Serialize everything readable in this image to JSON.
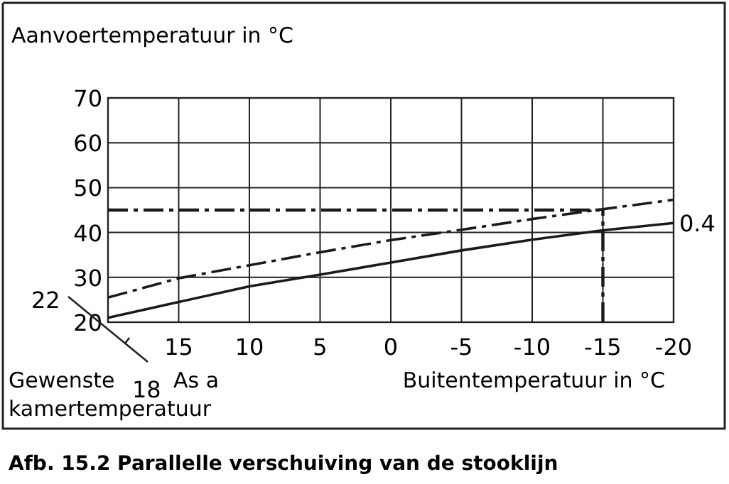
{
  "chart_data": {
    "type": "line",
    "title": "Afb. 15.2  Parallelle verschuiving van de stooklijn",
    "xlabel": "Buitentemperatuur in °C",
    "ylabel": "Aanvoertemperatuur in °C",
    "x": [
      20,
      15,
      10,
      5,
      0,
      -5,
      -10,
      -15,
      -20
    ],
    "series": [
      {
        "name": "0.4",
        "color": "#1a1a1a",
        "line_style": "solid",
        "values": [
          21,
          24.5,
          28,
          30.6,
          33.3,
          36,
          38.4,
          40.5,
          42.1
        ]
      },
      {
        "color": "#1a1a1a",
        "line_style": "dashed",
        "values": [
          25.5,
          29.8,
          32.7,
          35.6,
          38.3,
          40.6,
          43,
          45.2,
          47.3
        ]
      }
    ],
    "xlim": [
      20,
      -20
    ],
    "xticks": [
      15,
      10,
      5,
      0,
      -5,
      -10,
      -15,
      -20
    ],
    "ylim": [
      20,
      70
    ],
    "yticks": [
      20,
      30,
      40,
      50,
      60,
      70
    ],
    "grid": true,
    "marker": "none",
    "ref_lines": [
      {
        "axis": "y",
        "value": 45,
        "color": "#1a1a1a",
        "line_style": "dashed"
      },
      {
        "axis": "x",
        "value": -15,
        "color": "#1a1a1a",
        "line_style": "dashed"
      }
    ],
    "annotations": [
      "22",
      "18",
      "Gewenste",
      "kamertemperatuur",
      "As a"
    ]
  }
}
